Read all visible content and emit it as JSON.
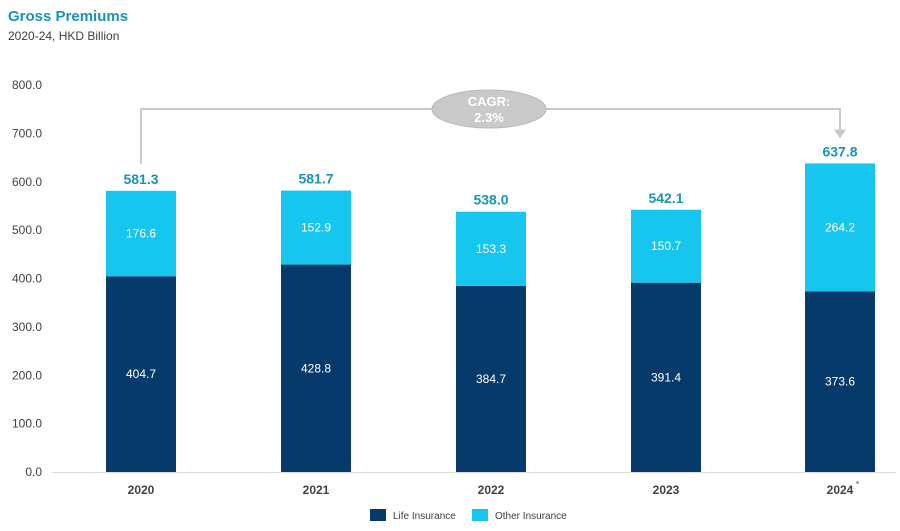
{
  "chart_data": {
    "type": "bar",
    "stacked": true,
    "title": "Gross Premiums",
    "subtitle": "2020-24, HKD Billion",
    "categories": [
      "2020",
      "2021",
      "2022",
      "2023",
      "2024"
    ],
    "category_notes": [
      "",
      "",
      "",
      "",
      "*"
    ],
    "series": [
      {
        "name": "Life Insurance",
        "color": "#063a6b",
        "values": [
          404.7,
          428.8,
          384.7,
          391.4,
          373.6
        ]
      },
      {
        "name": "Other Insurance",
        "color": "#17c6ee",
        "values": [
          176.6,
          152.9,
          153.3,
          150.7,
          264.2
        ]
      }
    ],
    "totals": [
      581.3,
      581.7,
      538.0,
      542.1,
      637.8
    ],
    "ylim": [
      0,
      800
    ],
    "yticks": [
      0,
      100,
      200,
      300,
      400,
      500,
      600,
      700,
      800
    ],
    "legend_position": "bottom",
    "annotation": {
      "line1": "CAGR:",
      "line2": "2.3%",
      "from": "2020",
      "to": "2024"
    }
  }
}
